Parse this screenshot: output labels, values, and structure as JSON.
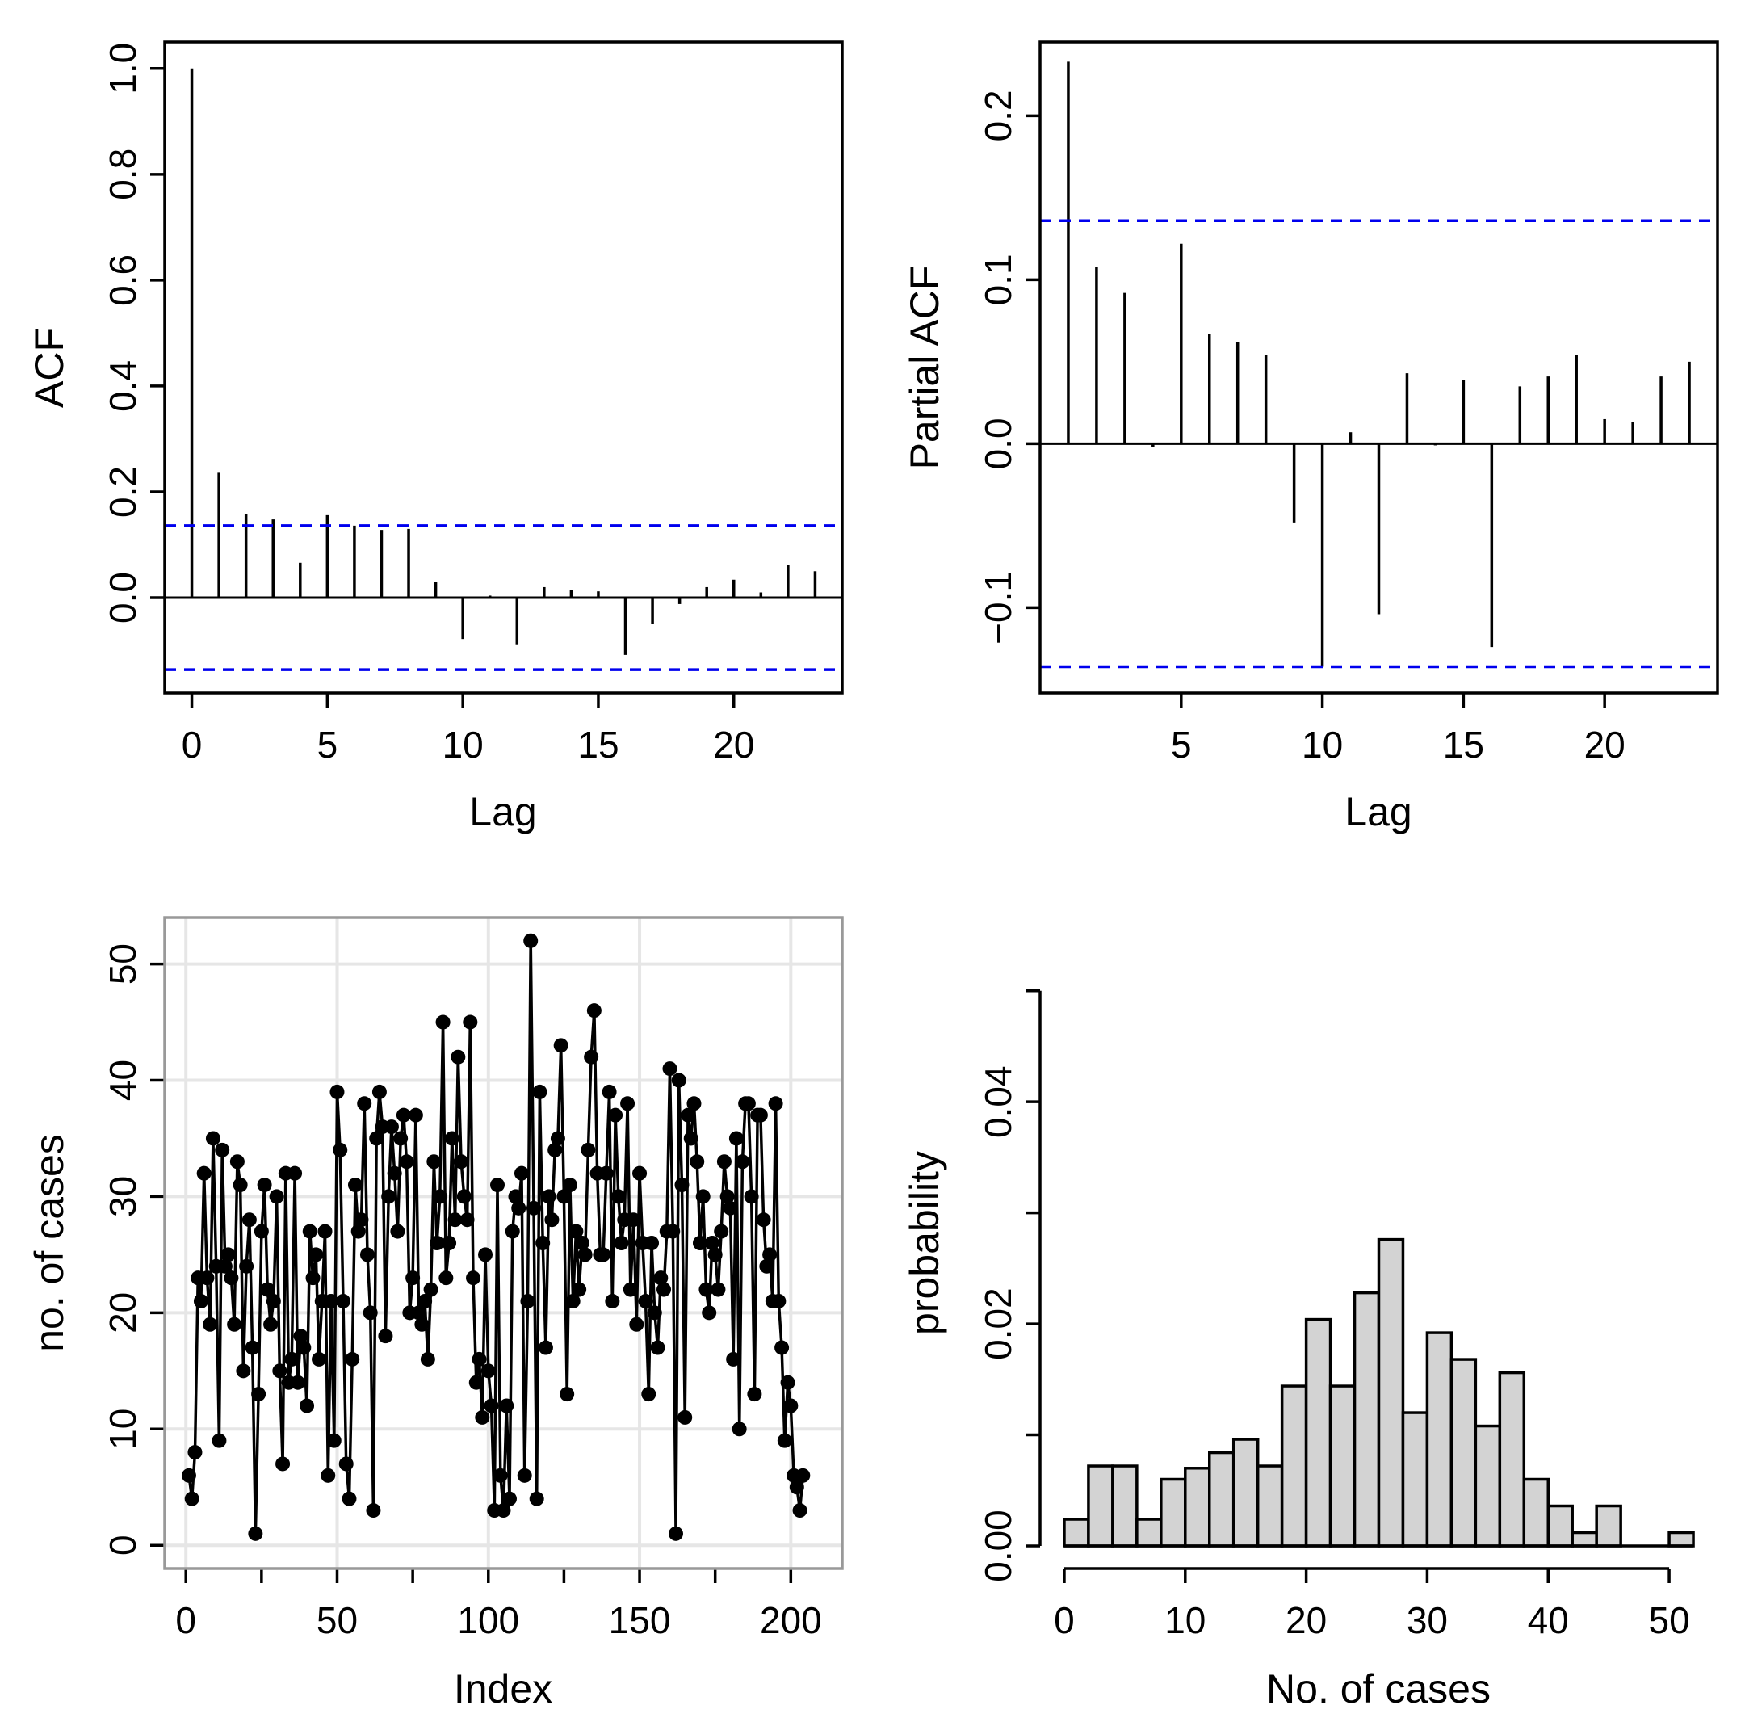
{
  "chart_data": [
    {
      "type": "bar",
      "panel": "acf",
      "xlabel": "Lag",
      "ylabel": "ACF",
      "xlim": [
        -1,
        24
      ],
      "ylim": [
        -0.18,
        1.05
      ],
      "x_ticks": [
        0,
        5,
        10,
        15,
        20
      ],
      "x_tick_labels": [
        "0",
        "5",
        "10",
        "15",
        "20"
      ],
      "y_ticks": [
        0.0,
        0.2,
        0.4,
        0.6,
        0.8,
        1.0
      ],
      "y_tick_labels": [
        "0.0",
        "0.2",
        "0.4",
        "0.6",
        "0.8",
        "1.0"
      ],
      "lags": [
        0,
        1,
        2,
        3,
        4,
        5,
        6,
        7,
        8,
        9,
        10,
        11,
        12,
        13,
        14,
        15,
        16,
        17,
        18,
        19,
        20,
        21,
        22,
        23
      ],
      "values": [
        1.0,
        0.236,
        0.158,
        0.148,
        0.066,
        0.156,
        0.136,
        0.128,
        0.13,
        0.03,
        -0.078,
        0.004,
        -0.088,
        0.02,
        0.014,
        0.012,
        -0.108,
        -0.05,
        -0.012,
        0.02,
        0.034,
        0.01,
        0.062,
        0.05
      ],
      "ci": 0.136,
      "ci_color": "#0000ee"
    },
    {
      "type": "bar",
      "panel": "pacf",
      "xlabel": "Lag",
      "ylabel": "Partial ACF",
      "xlim": [
        0,
        24
      ],
      "ylim": [
        -0.152,
        0.245
      ],
      "x_ticks": [
        5,
        10,
        15,
        20
      ],
      "x_tick_labels": [
        "5",
        "10",
        "15",
        "20"
      ],
      "y_ticks": [
        -0.1,
        0.0,
        0.1,
        0.2
      ],
      "y_tick_labels": [
        "−0.1",
        "0.0",
        "0.1",
        "0.2"
      ],
      "lags": [
        1,
        2,
        3,
        4,
        5,
        6,
        7,
        8,
        9,
        10,
        11,
        12,
        13,
        14,
        15,
        16,
        17,
        18,
        19,
        20,
        21,
        22,
        23
      ],
      "values": [
        0.233,
        0.108,
        0.092,
        -0.002,
        0.122,
        0.067,
        0.062,
        0.054,
        -0.048,
        -0.136,
        0.007,
        -0.104,
        0.043,
        -0.001,
        0.039,
        -0.124,
        0.035,
        0.041,
        0.054,
        0.015,
        0.013,
        0.041,
        0.05
      ],
      "ci": 0.136,
      "ci_color": "#0000ee"
    },
    {
      "type": "line",
      "panel": "series",
      "xlabel": "Index",
      "ylabel": "no. of cases",
      "xlim": [
        -7,
        217
      ],
      "ylim": [
        -2,
        54
      ],
      "x_ticks": [
        0,
        50,
        100,
        150,
        200
      ],
      "x_tick_labels": [
        "0",
        "50",
        "100",
        "150",
        "200"
      ],
      "x_minor_ticks": [
        25,
        75,
        125,
        175
      ],
      "y_ticks": [
        0,
        10,
        20,
        30,
        40,
        50
      ],
      "y_tick_labels": [
        "0",
        "10",
        "20",
        "30",
        "40",
        "50"
      ],
      "grid": true,
      "values": [
        6,
        4,
        8,
        23,
        21,
        32,
        23,
        19,
        35,
        24,
        9,
        34,
        24,
        25,
        23,
        19,
        33,
        31,
        15,
        24,
        28,
        17,
        1,
        13,
        27,
        31,
        22,
        19,
        21,
        30,
        15,
        7,
        32,
        14,
        16,
        32,
        14,
        18,
        17,
        12,
        27,
        23,
        25,
        16,
        21,
        27,
        6,
        21,
        9,
        39,
        34,
        21,
        7,
        4,
        16,
        31,
        27,
        28,
        38,
        25,
        20,
        3,
        35,
        39,
        36,
        18,
        30,
        36,
        32,
        27,
        35,
        37,
        33,
        20,
        23,
        37,
        20,
        19,
        21,
        16,
        22,
        33,
        26,
        30,
        45,
        23,
        26,
        35,
        28,
        42,
        33,
        30,
        28,
        45,
        23,
        14,
        16,
        11,
        25,
        15,
        12,
        3,
        31,
        6,
        3,
        12,
        4,
        27,
        30,
        29,
        32,
        6,
        21,
        52,
        29,
        4,
        39,
        26,
        17,
        30,
        28,
        34,
        35,
        43,
        30,
        13,
        31,
        21,
        27,
        22,
        26,
        25,
        34,
        42,
        46,
        32,
        25,
        25,
        32,
        39,
        21,
        37,
        30,
        26,
        28,
        38,
        22,
        28,
        19,
        32,
        26,
        21,
        13,
        26,
        20,
        17,
        23,
        22,
        27,
        41,
        27,
        1,
        40,
        31,
        11,
        37,
        35,
        38,
        33,
        26,
        30,
        22,
        20,
        26,
        25,
        22,
        27,
        33,
        30,
        29,
        16,
        35,
        10,
        33,
        38,
        38,
        30,
        13,
        37,
        37,
        28,
        24,
        25,
        21,
        38,
        21,
        17,
        9,
        14,
        12,
        6,
        5,
        3,
        6
      ],
      "line_color": "#000000"
    },
    {
      "type": "bar",
      "panel": "histogram",
      "xlabel": "No. of cases",
      "ylabel": "probability",
      "xlim": [
        -2,
        54
      ],
      "ylim": [
        0,
        0.0566
      ],
      "x_ticks": [
        0,
        10,
        20,
        30,
        40,
        50
      ],
      "x_tick_labels": [
        "0",
        "10",
        "20",
        "30",
        "40",
        "50"
      ],
      "y_ticks": [
        0.0,
        0.01,
        0.02,
        0.03,
        0.04,
        0.05
      ],
      "y_tick_labels": [
        "0.00",
        "",
        "0.02",
        "",
        "0.04",
        ""
      ],
      "bin_edges": [
        0,
        2,
        4,
        6,
        8,
        10,
        12,
        14,
        16,
        18,
        20,
        22,
        24,
        26,
        28,
        30,
        32,
        34,
        36,
        38,
        40,
        42,
        44,
        46,
        48,
        50,
        52
      ],
      "values": [
        0.0024,
        0.0072,
        0.0072,
        0.0024,
        0.006,
        0.007,
        0.0084,
        0.0096,
        0.0072,
        0.0144,
        0.0204,
        0.0144,
        0.0228,
        0.0276,
        0.012,
        0.0192,
        0.0168,
        0.0108,
        0.0156,
        0.006,
        0.0036,
        0.0012,
        0.0036,
        0.0,
        0.0,
        0.0012
      ],
      "bar_color": "#d3d3d3"
    }
  ]
}
